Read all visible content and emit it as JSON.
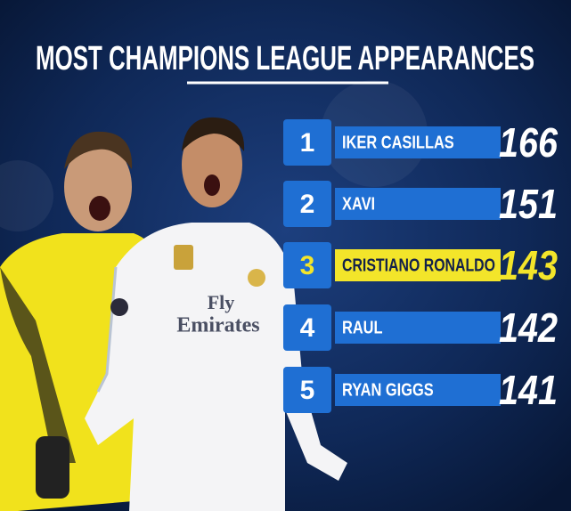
{
  "title": "MOST CHAMPIONS LEAGUE APPEARANCES",
  "photo_text": [
    "Fly",
    "Emirates"
  ],
  "rows": [
    {
      "rank": "1",
      "name": "IKER CASILLAS",
      "value": 166,
      "highlight": false
    },
    {
      "rank": "2",
      "name": "XAVI",
      "value": 151,
      "highlight": false
    },
    {
      "rank": "3",
      "name": "CRISTIANO RONALDO",
      "value": 143,
      "highlight": true
    },
    {
      "rank": "4",
      "name": "RAUL",
      "value": 142,
      "highlight": false
    },
    {
      "rank": "5",
      "name": "RYAN GIGGS",
      "value": 141,
      "highlight": false
    }
  ]
}
